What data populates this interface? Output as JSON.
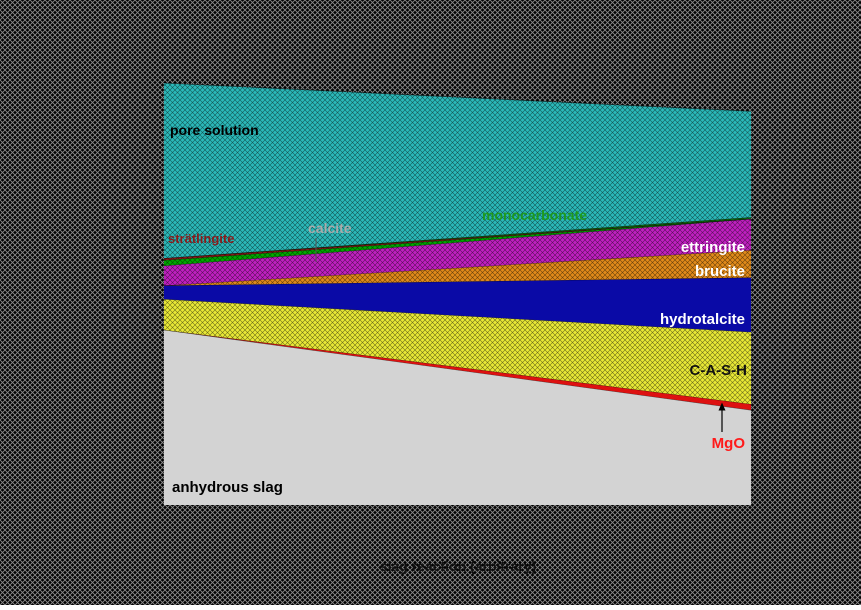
{
  "chart_data": {
    "type": "area",
    "title": "",
    "xlabel": "slag reaction (arbitrary)",
    "ylabel": "",
    "x": [
      0,
      1
    ],
    "ylim": [
      0,
      100
    ],
    "stacking": "stacked from bottom; boundaries are upper edges of each phase (percent of total volume)",
    "series": [
      {
        "name": "anhydrous slag",
        "upper": [
          41.5,
          22.5
        ],
        "color": "#d3d3d3",
        "pattern": "solid"
      },
      {
        "name": "MgO",
        "upper": [
          41.5,
          23.9
        ],
        "color": "#dd1111",
        "pattern": "solid"
      },
      {
        "name": "C-A-S-H",
        "upper": [
          48.8,
          41.0
        ],
        "color": "#e8e836",
        "pattern": "hatch"
      },
      {
        "name": "hydrotalcite",
        "upper": [
          52.0,
          53.9
        ],
        "color": "#0a0aa6",
        "pattern": "solid"
      },
      {
        "name": "brucite",
        "upper": [
          52.0,
          60.4
        ],
        "color": "#e08a1a",
        "pattern": "hatch"
      },
      {
        "name": "ettringite",
        "upper": [
          56.7,
          67.8
        ],
        "color": "#c020c0",
        "pattern": "hatch"
      },
      {
        "name": "calcite",
        "upper": [
          58.0,
          67.8
        ],
        "color": "#00aa00",
        "pattern": "hatch"
      },
      {
        "name": "strätlingite",
        "upper": [
          58.5,
          67.8
        ],
        "color": "#8b1a1a",
        "pattern": "hatch"
      },
      {
        "name": "monocarbonate",
        "upper": [
          58.5,
          68.2
        ],
        "color": "#0e6e0e",
        "pattern": "hatch"
      },
      {
        "name": "pore solution",
        "upper": [
          100,
          93.3
        ],
        "color": "#2bb8b8",
        "pattern": "hatch"
      }
    ],
    "annotations": [
      {
        "text": "pore solution",
        "color": "#000000"
      },
      {
        "text": "strätlingite",
        "color": "#8b1a1a"
      },
      {
        "text": "calcite",
        "color": "#aaaaaa"
      },
      {
        "text": "monocarbonate",
        "color": "#1e9a1e"
      },
      {
        "text": "ettringite",
        "color": "#ffffff"
      },
      {
        "text": "brucite",
        "color": "#ffffff"
      },
      {
        "text": "hydrotalcite",
        "color": "#ffffff"
      },
      {
        "text": "C-A-S-H",
        "color": "#111111"
      },
      {
        "text": "MgO",
        "color": "#ff1a1a"
      },
      {
        "text": "anhydrous slag",
        "color": "#000000"
      }
    ],
    "background": "#000000"
  }
}
